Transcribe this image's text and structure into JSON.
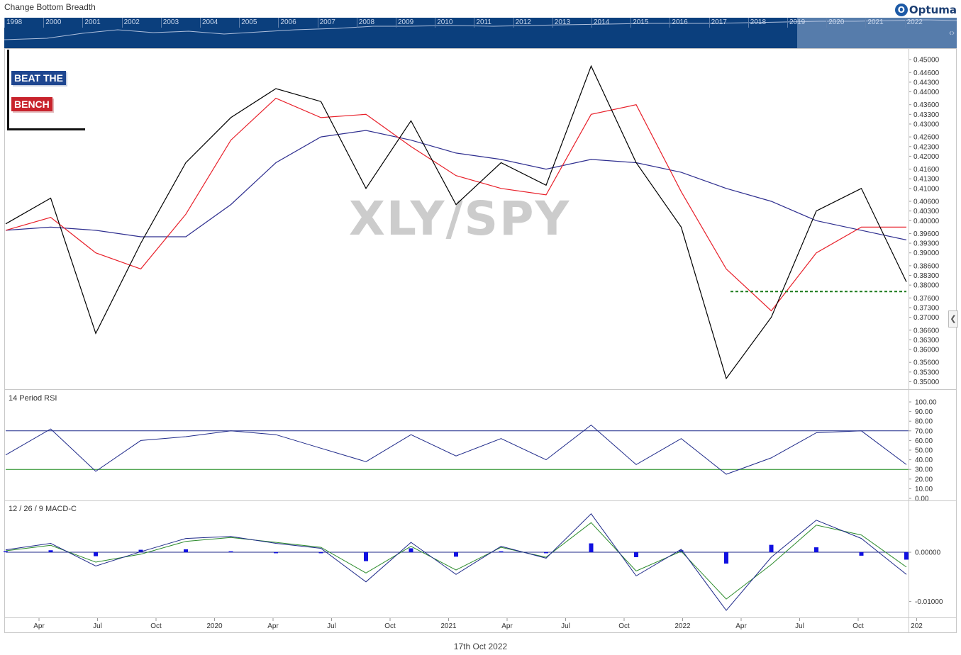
{
  "window": {
    "title": "Change Bottom Breadth",
    "date_label": "17th Oct 2022",
    "brand": "Optuma"
  },
  "navigator": {
    "years": [
      "1998",
      "2000",
      "2001",
      "2002",
      "2003",
      "2004",
      "2005",
      "2006",
      "2007",
      "2008",
      "2009",
      "2010",
      "2011",
      "2012",
      "2013",
      "2014",
      "2015",
      "2016",
      "2017",
      "2018",
      "2019",
      "2020",
      "2021",
      "2022"
    ],
    "selected_from": "2019",
    "selected_to": "2022"
  },
  "branding": {
    "line1": "BEAT THE",
    "line2": "BENCH"
  },
  "colors": {
    "price": "#000000",
    "ma_fast": "#e8202a",
    "ma_slow": "#2e2e8f",
    "support": "#1a7a1a",
    "rsi": "#1f2a8a",
    "rsi_upper": "#1f2a8a",
    "rsi_lower": "#1a8a1a",
    "macd": "#1f2a8a",
    "signal": "#2a8a2a",
    "histogram": "#1010e0"
  },
  "chart_data": [
    {
      "type": "line",
      "title": "XLY/SPY",
      "x": [
        "2019-12",
        "2020-02",
        "2020-03",
        "2020-04",
        "2020-06",
        "2020-08",
        "2020-10",
        "2020-12",
        "2021-02",
        "2021-03",
        "2021-05",
        "2021-07",
        "2021-09",
        "2021-11",
        "2022-01",
        "2022-03",
        "2022-05",
        "2022-06",
        "2022-08",
        "2022-09",
        "2022-10"
      ],
      "series": [
        {
          "values": [
            0.399,
            0.407,
            0.365,
            0.393,
            0.418,
            0.432,
            0.441,
            0.437,
            0.41,
            0.431,
            0.405,
            0.418,
            0.411,
            0.448,
            0.418,
            0.398,
            0.351,
            0.37,
            0.403,
            0.41,
            0.381
          ]
        },
        {
          "values": [
            0.397,
            0.401,
            0.39,
            0.385,
            0.402,
            0.425,
            0.438,
            0.432,
            0.433,
            0.423,
            0.414,
            0.41,
            0.408,
            0.433,
            0.436,
            0.409,
            0.385,
            0.372,
            0.39,
            0.398,
            0.398
          ]
        },
        {
          "values": [
            0.397,
            0.398,
            0.397,
            0.395,
            0.395,
            0.405,
            0.418,
            0.426,
            0.428,
            0.425,
            0.421,
            0.419,
            0.416,
            0.419,
            0.418,
            0.415,
            0.41,
            0.406,
            0.4,
            0.397,
            0.394
          ]
        }
      ],
      "support_level": 0.378,
      "yticks": [
        "0.45000",
        "0.44600",
        "0.44300",
        "0.44000",
        "0.43600",
        "0.43300",
        "0.43000",
        "0.42600",
        "0.42300",
        "0.42000",
        "0.41600",
        "0.41300",
        "0.41000",
        "0.40600",
        "0.40300",
        "0.40000",
        "0.39600",
        "0.39300",
        "0.39000",
        "0.38600",
        "0.38300",
        "0.38000",
        "0.37600",
        "0.37300",
        "0.37000",
        "0.36600",
        "0.36300",
        "0.36000",
        "0.35600",
        "0.35300",
        "0.35000"
      ],
      "xticks": [
        "Apr",
        "Jul",
        "Oct",
        "2020",
        "Apr",
        "Jul",
        "Oct",
        "2021",
        "Apr",
        "Jul",
        "Oct",
        "2022",
        "Apr",
        "Jul",
        "Oct",
        "202"
      ],
      "ylim": [
        0.349,
        0.452
      ]
    },
    {
      "type": "line",
      "title": "14 Period RSI",
      "x": [
        "2019-12",
        "2020-02",
        "2020-03",
        "2020-04",
        "2020-06",
        "2020-08",
        "2020-10",
        "2020-12",
        "2021-02",
        "2021-03",
        "2021-05",
        "2021-07",
        "2021-09",
        "2021-11",
        "2022-01",
        "2022-03",
        "2022-05",
        "2022-06",
        "2022-08",
        "2022-09",
        "2022-10"
      ],
      "values": [
        45,
        72,
        28,
        60,
        64,
        70,
        66,
        52,
        38,
        66,
        44,
        62,
        40,
        76,
        35,
        62,
        25,
        42,
        68,
        70,
        35
      ],
      "bands": [
        70,
        30
      ],
      "yticks": [
        "100.00",
        "90.00",
        "80.00",
        "70.00",
        "60.00",
        "50.00",
        "40.00",
        "30.00",
        "20.00",
        "10.00",
        "0.00"
      ],
      "ylim": [
        0,
        100
      ]
    },
    {
      "type": "line",
      "title": "12 / 26 / 9 MACD-C",
      "x": [
        "2019-12",
        "2020-02",
        "2020-03",
        "2020-04",
        "2020-06",
        "2020-08",
        "2020-10",
        "2020-12",
        "2021-02",
        "2021-03",
        "2021-05",
        "2021-07",
        "2021-09",
        "2021-11",
        "2022-01",
        "2022-03",
        "2022-05",
        "2022-06",
        "2022-08",
        "2022-09",
        "2022-10"
      ],
      "series": [
        {
          "values": [
            0.0005,
            0.0018,
            -0.0028,
            0.0001,
            0.0028,
            0.0032,
            0.0018,
            0.0008,
            -0.006,
            0.002,
            -0.0045,
            0.0012,
            -0.0012,
            0.0078,
            -0.0048,
            0.0006,
            -0.0118,
            -0.001,
            0.0065,
            0.0028,
            -0.0045
          ]
        },
        {
          "values": [
            0.0003,
            0.0014,
            -0.002,
            -0.0004,
            0.0022,
            0.003,
            0.002,
            0.001,
            -0.0042,
            0.0012,
            -0.0036,
            0.001,
            -0.001,
            0.006,
            -0.0038,
            0.0002,
            -0.0095,
            -0.0025,
            0.0055,
            0.0035,
            -0.003
          ]
        }
      ],
      "yticks": [
        "0.00000",
        "-0.01000"
      ],
      "ylim": [
        -0.0125,
        0.0082
      ]
    }
  ]
}
